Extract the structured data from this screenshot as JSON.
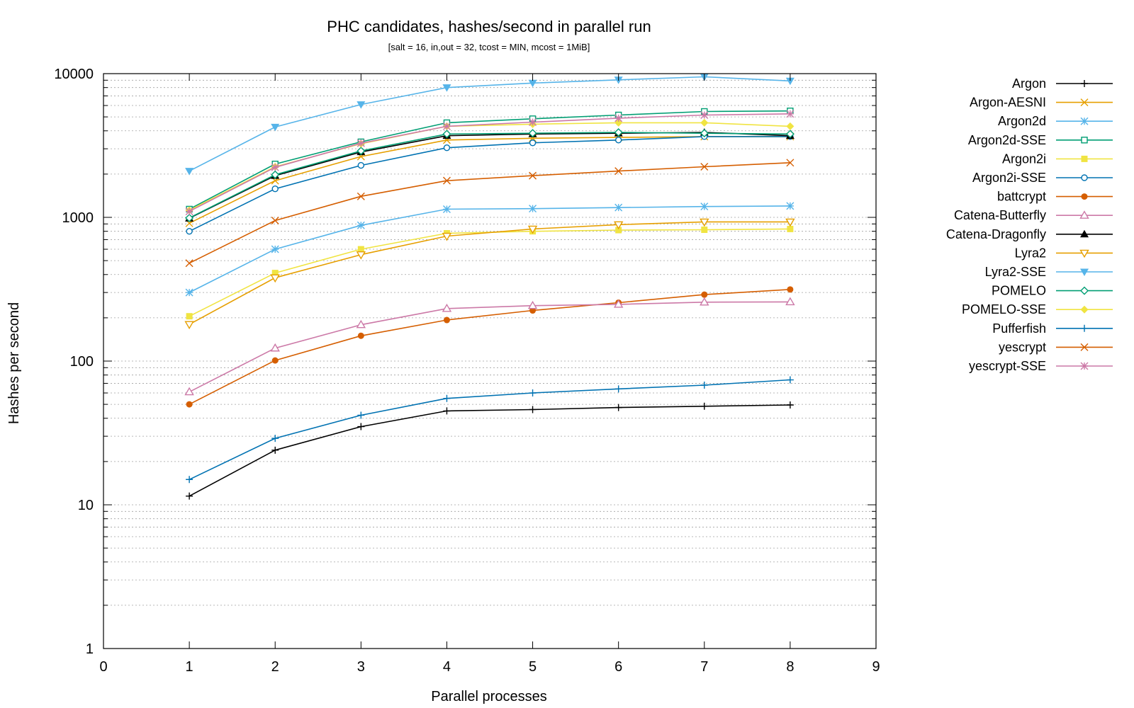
{
  "chart_data": {
    "type": "line",
    "title": "PHC candidates, hashes/second in parallel run",
    "subtitle": "[salt = 16, in,out = 32, tcost = MIN, mcost = 1MiB]",
    "xlabel": "Parallel processes",
    "ylabel": "Hashes per second",
    "xlim": [
      0,
      9
    ],
    "ylim": [
      1,
      10000
    ],
    "yscale": "log",
    "grid": "horizontal, major and minor (dotted)",
    "legend_position": "right",
    "x_ticks": [
      "0",
      "1",
      "2",
      "3",
      "4",
      "5",
      "6",
      "7",
      "8",
      "9"
    ],
    "y_ticks": [
      {
        "value": 1,
        "label": "1"
      },
      {
        "value": 10,
        "label": "10"
      },
      {
        "value": 100,
        "label": "100"
      },
      {
        "value": 1000,
        "label": "1000"
      },
      {
        "value": 10000,
        "label": "10000"
      }
    ],
    "x": [
      1,
      2,
      3,
      4,
      5,
      6,
      7,
      8
    ],
    "series": [
      {
        "name": "Argon",
        "color": "#000000",
        "marker": "plus",
        "values": [
          11.5,
          24,
          35,
          45,
          46,
          47.5,
          48.5,
          49.5
        ]
      },
      {
        "name": "Argon-AESNI",
        "color": "#e69f00",
        "marker": "cross",
        "values": [
          910,
          1800,
          2650,
          3450,
          3550,
          3600,
          3650,
          3650
        ]
      },
      {
        "name": "Argon2d",
        "color": "#56b4e9",
        "marker": "star",
        "values": [
          300,
          600,
          880,
          1140,
          1150,
          1170,
          1190,
          1200
        ]
      },
      {
        "name": "Argon2d-SSE",
        "color": "#009e73",
        "marker": "square-open",
        "values": [
          1140,
          2350,
          3350,
          4550,
          4850,
          5150,
          5450,
          5500
        ]
      },
      {
        "name": "Argon2i",
        "color": "#f0e442",
        "marker": "square-filled",
        "values": [
          205,
          410,
          600,
          775,
          800,
          815,
          820,
          830
        ]
      },
      {
        "name": "Argon2i-SSE",
        "color": "#0072b2",
        "marker": "circle-open",
        "values": [
          800,
          1580,
          2300,
          3050,
          3300,
          3450,
          3650,
          3650
        ]
      },
      {
        "name": "battcrypt",
        "color": "#d55e00",
        "marker": "circle-filled",
        "values": [
          50,
          101,
          150,
          193,
          225,
          255,
          290,
          315
        ]
      },
      {
        "name": "Catena-Butterfly",
        "color": "#cc79a7",
        "marker": "triangle-open",
        "values": [
          61,
          123,
          179,
          232,
          243,
          248,
          257,
          258
        ]
      },
      {
        "name": "Catena-Dragonfly",
        "color": "#000000",
        "marker": "triangle-filled",
        "values": [
          985,
          1950,
          2850,
          3700,
          3800,
          3850,
          3900,
          3700
        ]
      },
      {
        "name": "Lyra2",
        "color": "#e69f00",
        "marker": "triangle-down-open",
        "values": [
          180,
          380,
          550,
          740,
          830,
          890,
          930,
          930
        ]
      },
      {
        "name": "Lyra2-SSE",
        "color": "#56b4e9",
        "marker": "triangle-down-filled",
        "values": [
          2100,
          4250,
          6100,
          8000,
          8600,
          9050,
          9500,
          8900
        ]
      },
      {
        "name": "POMELO",
        "color": "#009e73",
        "marker": "diamond-open",
        "values": [
          990,
          1980,
          2900,
          3800,
          3850,
          3900,
          3850,
          3800
        ]
      },
      {
        "name": "POMELO-SSE",
        "color": "#f0e442",
        "marker": "diamond-filled",
        "values": [
          1120,
          2250,
          3250,
          4300,
          4450,
          4550,
          4550,
          4300
        ]
      },
      {
        "name": "Pufferfish",
        "color": "#0072b2",
        "marker": "plus",
        "values": [
          15,
          29,
          42,
          55,
          60,
          64,
          68,
          74
        ]
      },
      {
        "name": "yescrypt",
        "color": "#d55e00",
        "marker": "cross",
        "values": [
          480,
          950,
          1400,
          1800,
          1950,
          2100,
          2250,
          2400
        ]
      },
      {
        "name": "yescrypt-SSE",
        "color": "#cc79a7",
        "marker": "star",
        "values": [
          1100,
          2230,
          3280,
          4300,
          4600,
          4900,
          5150,
          5250
        ]
      }
    ]
  }
}
